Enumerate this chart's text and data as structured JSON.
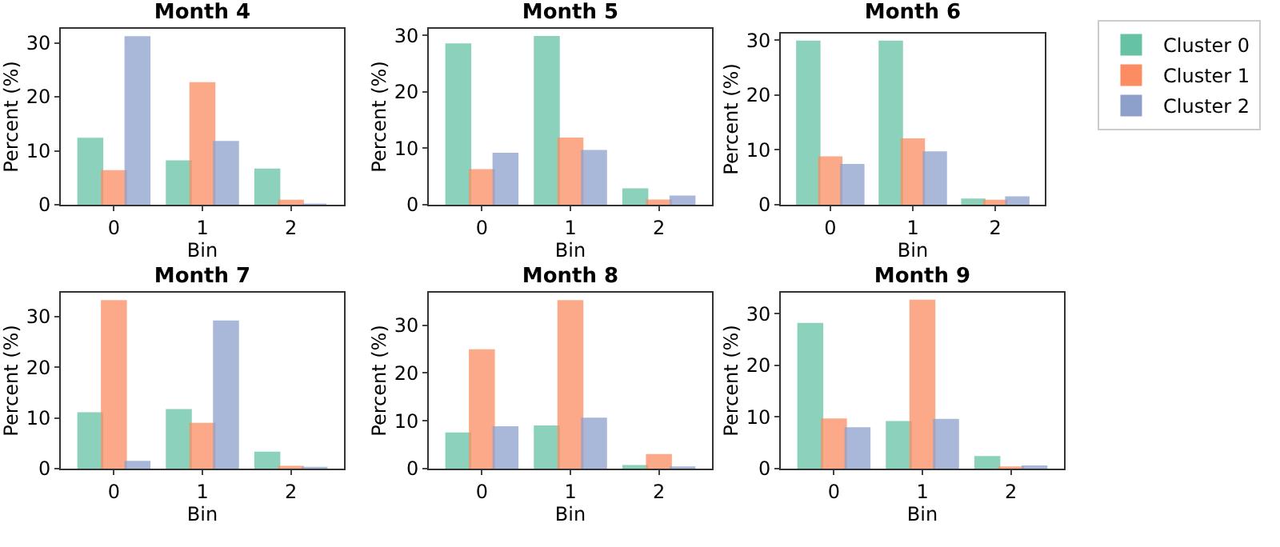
{
  "chart_data": [
    {
      "type": "bar",
      "title": "Month 4",
      "xlabel": "Bin",
      "ylabel": "Percent (%)",
      "categories": [
        "0",
        "1",
        "2"
      ],
      "ylim": [
        0,
        32.6
      ],
      "yticks": [
        0,
        10,
        20,
        30
      ],
      "series": [
        {
          "color": "#66c2a5",
          "values": [
            12.2,
            8,
            6.5
          ]
        },
        {
          "color": "#fc8d62",
          "values": [
            6.2,
            22.5,
            0.7
          ]
        },
        {
          "color": "#8da0cb",
          "values": [
            31,
            11.6,
            0
          ]
        }
      ]
    },
    {
      "type": "bar",
      "title": "Month 5",
      "xlabel": "Bin",
      "ylabel": "Percent (%)",
      "categories": [
        "0",
        "1",
        "2"
      ],
      "ylim": [
        0,
        31.2
      ],
      "yticks": [
        0,
        10,
        20,
        30
      ],
      "series": [
        {
          "color": "#66c2a5",
          "values": [
            28.4,
            29.7,
            2.7
          ]
        },
        {
          "color": "#fc8d62",
          "values": [
            6.1,
            11.7,
            0.7
          ]
        },
        {
          "color": "#8da0cb",
          "values": [
            9,
            9.5,
            1.4
          ]
        }
      ]
    },
    {
      "type": "bar",
      "title": "Month 6",
      "xlabel": "Bin",
      "ylabel": "Percent (%)",
      "categories": [
        "0",
        "1",
        "2"
      ],
      "ylim": [
        0,
        31.2
      ],
      "yticks": [
        0,
        10,
        20,
        30
      ],
      "legend": "top right",
      "series": [
        {
          "name": "Cluster 0",
          "color": "#66c2a5",
          "values": [
            29.7,
            29.7,
            0.9
          ]
        },
        {
          "name": "Cluster 1",
          "color": "#fc8d62",
          "values": [
            8.6,
            11.9,
            0.7
          ]
        },
        {
          "name": "Cluster 2",
          "color": "#8da0cb",
          "values": [
            7.2,
            9.5,
            1.3
          ]
        }
      ]
    },
    {
      "type": "bar",
      "title": "Month 7",
      "xlabel": "Bin",
      "ylabel": "Percent (%)",
      "categories": [
        "0",
        "1",
        "2"
      ],
      "ylim": [
        0,
        34.7
      ],
      "yticks": [
        0,
        10,
        20,
        30
      ],
      "series": [
        {
          "color": "#66c2a5",
          "values": [
            10.9,
            11.5,
            3.1
          ]
        },
        {
          "color": "#fc8d62",
          "values": [
            33,
            8.8,
            0.3
          ]
        },
        {
          "color": "#8da0cb",
          "values": [
            1.3,
            29,
            0.1
          ]
        }
      ]
    },
    {
      "type": "bar",
      "title": "Month 8",
      "xlabel": "Bin",
      "ylabel": "Percent (%)",
      "categories": [
        "0",
        "1",
        "2"
      ],
      "ylim": [
        0,
        36.8
      ],
      "yticks": [
        0,
        10,
        20,
        30
      ],
      "series": [
        {
          "color": "#66c2a5",
          "values": [
            7.3,
            8.8,
            0.5
          ]
        },
        {
          "color": "#fc8d62",
          "values": [
            24.7,
            35,
            2.8
          ]
        },
        {
          "color": "#8da0cb",
          "values": [
            8.6,
            10.4,
            0.2
          ]
        }
      ]
    },
    {
      "type": "bar",
      "title": "Month 9",
      "xlabel": "Bin",
      "ylabel": "Percent (%)",
      "categories": [
        "0",
        "1",
        "2"
      ],
      "ylim": [
        0,
        34.1
      ],
      "yticks": [
        0,
        10,
        20,
        30
      ],
      "series": [
        {
          "color": "#66c2a5",
          "values": [
            28,
            9,
            2.2
          ]
        },
        {
          "color": "#fc8d62",
          "values": [
            9.5,
            32.5,
            0.2
          ]
        },
        {
          "color": "#8da0cb",
          "values": [
            7.8,
            9.4,
            0.4
          ]
        }
      ]
    }
  ]
}
